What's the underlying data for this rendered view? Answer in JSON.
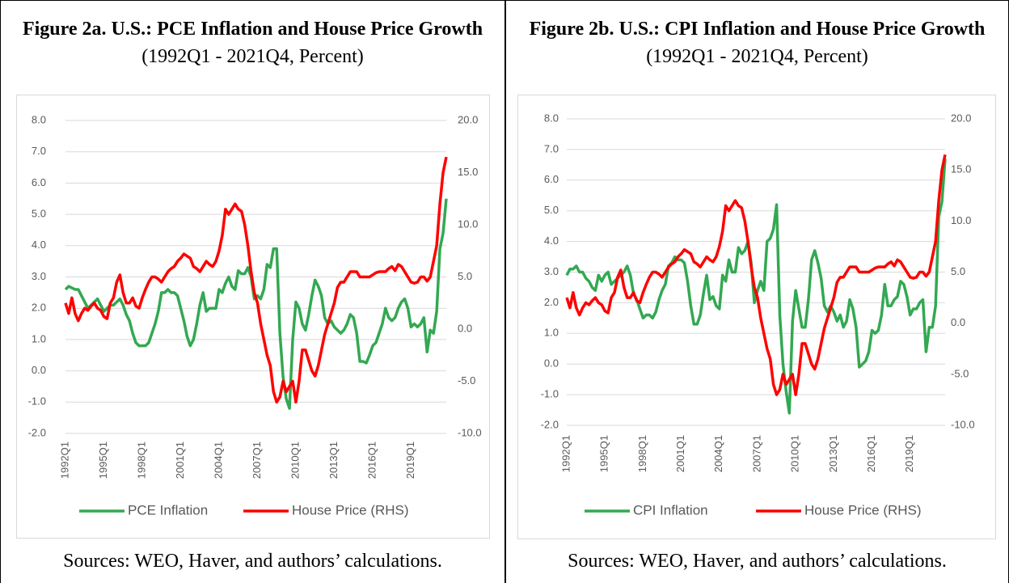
{
  "chart_data": [
    {
      "type": "line",
      "title": "Figure 2a. U.S.: PCE Inflation and House Price Growth",
      "subtitle": "(1992Q1 - 2021Q4, Percent)",
      "source": "Sources: WEO, Haver, and authors’ calculations.",
      "categories": [
        "1992Q1",
        null,
        null,
        null,
        null,
        null,
        null,
        null,
        null,
        null,
        null,
        null,
        "1995Q1",
        null,
        null,
        null,
        null,
        null,
        null,
        null,
        null,
        null,
        null,
        null,
        "1998Q1",
        null,
        null,
        null,
        null,
        null,
        null,
        null,
        null,
        null,
        null,
        null,
        "2001Q1",
        null,
        null,
        null,
        null,
        null,
        null,
        null,
        null,
        null,
        null,
        null,
        "2004Q1",
        null,
        null,
        null,
        null,
        null,
        null,
        null,
        null,
        null,
        null,
        null,
        "2007Q1",
        null,
        null,
        null,
        null,
        null,
        null,
        null,
        null,
        null,
        null,
        null,
        "2010Q1",
        null,
        null,
        null,
        null,
        null,
        null,
        null,
        null,
        null,
        null,
        null,
        "2013Q1",
        null,
        null,
        null,
        null,
        null,
        null,
        null,
        null,
        null,
        null,
        null,
        "2016Q1",
        null,
        null,
        null,
        null,
        null,
        null,
        null,
        null,
        null,
        null,
        null,
        "2019Q1",
        null,
        null,
        null,
        null,
        null,
        null,
        null,
        null,
        null,
        null,
        null
      ],
      "ylim": [
        -2,
        8
      ],
      "yticks": [
        {
          "value": -2,
          "label": "-2.0"
        },
        {
          "value": -1,
          "label": "-1.0"
        },
        {
          "value": 0,
          "label": "0.0"
        },
        {
          "value": 1,
          "label": "1.0"
        },
        {
          "value": 2,
          "label": "2.0"
        },
        {
          "value": 3,
          "label": "3.0"
        },
        {
          "value": 4,
          "label": "4.0"
        },
        {
          "value": 5,
          "label": "5.0"
        },
        {
          "value": 6,
          "label": "6.0"
        },
        {
          "value": 7,
          "label": "7.0"
        },
        {
          "value": 8,
          "label": "8.0"
        }
      ],
      "y2lim": [
        -10,
        20
      ],
      "y2ticks": [
        {
          "value": -10,
          "label": "-10.0"
        },
        {
          "value": -5,
          "label": "-5.0"
        },
        {
          "value": 0,
          "label": "0.0"
        },
        {
          "value": 5,
          "label": "5.0"
        },
        {
          "value": 10,
          "label": "10.0"
        },
        {
          "value": 15,
          "label": "15.0"
        },
        {
          "value": 20,
          "label": "20.0"
        }
      ],
      "grid": true,
      "legend": "bottom",
      "series": [
        {
          "name": "PCE Inflation",
          "color": "#33a852",
          "values": [
            2.6,
            2.7,
            2.65,
            2.6,
            2.6,
            2.4,
            2.2,
            2.0,
            2.1,
            2.2,
            2.3,
            2.1,
            1.9,
            2.0,
            2.1,
            2.1,
            2.2,
            2.3,
            2.1,
            1.8,
            1.6,
            1.2,
            0.9,
            0.8,
            0.8,
            0.8,
            0.9,
            1.2,
            1.5,
            1.9,
            2.5,
            2.5,
            2.6,
            2.5,
            2.5,
            2.4,
            2.0,
            1.6,
            1.1,
            0.8,
            1.0,
            1.5,
            2.1,
            2.5,
            1.9,
            2.0,
            2.0,
            2.0,
            2.6,
            2.5,
            2.8,
            3.0,
            2.7,
            2.6,
            3.2,
            3.1,
            3.1,
            3.3,
            3.0,
            2.3,
            2.4,
            2.3,
            2.6,
            3.4,
            3.3,
            3.9,
            3.9,
            1.2,
            -0.2,
            -0.9,
            -1.2,
            1.0,
            2.2,
            2.0,
            1.5,
            1.3,
            1.8,
            2.4,
            2.9,
            2.7,
            2.4,
            1.7,
            1.5,
            1.6,
            1.4,
            1.3,
            1.2,
            1.3,
            1.5,
            1.8,
            1.7,
            1.2,
            0.3,
            0.3,
            0.25,
            0.5,
            0.8,
            0.9,
            1.2,
            1.5,
            2.0,
            1.7,
            1.6,
            1.7,
            2.0,
            2.2,
            2.3,
            2.0,
            1.4,
            1.5,
            1.4,
            1.5,
            1.7,
            0.6,
            1.3,
            1.2,
            1.9,
            3.9,
            4.4,
            5.5
          ]
        },
        {
          "name": "House Price (RHS)",
          "color": "#ff0000",
          "axis": "y2",
          "values": [
            2.5,
            1.5,
            3.0,
            1.5,
            0.8,
            1.5,
            2.0,
            1.8,
            2.2,
            2.5,
            2.0,
            1.8,
            1.2,
            1.0,
            2.5,
            3.0,
            4.5,
            5.2,
            3.5,
            2.5,
            2.5,
            3.0,
            2.2,
            2.0,
            3.0,
            3.8,
            4.5,
            5.0,
            5.0,
            4.8,
            4.5,
            5.0,
            5.5,
            5.8,
            6.0,
            6.5,
            6.8,
            7.2,
            7.0,
            6.8,
            6.0,
            5.8,
            5.5,
            6.0,
            6.5,
            6.2,
            6.0,
            6.5,
            7.5,
            9.0,
            11.5,
            11.0,
            11.5,
            12.0,
            11.5,
            11.3,
            10.0,
            8.0,
            5.5,
            3.5,
            2.5,
            0.5,
            -1.0,
            -2.5,
            -3.5,
            -6.0,
            -7.0,
            -6.5,
            -5.0,
            -6.0,
            -5.5,
            -5.0,
            -7.0,
            -5.0,
            -2.0,
            -2.0,
            -3.0,
            -4.0,
            -4.5,
            -3.5,
            -2.0,
            -0.5,
            0.5,
            1.5,
            2.5,
            4.0,
            4.5,
            4.5,
            5.0,
            5.5,
            5.5,
            5.5,
            5.0,
            5.0,
            5.0,
            5.0,
            5.2,
            5.4,
            5.5,
            5.5,
            5.5,
            5.8,
            6.0,
            5.6,
            6.2,
            6.0,
            5.5,
            5.0,
            4.5,
            4.4,
            4.5,
            5.0,
            5.0,
            4.6,
            5.0,
            6.5,
            8.0,
            12.0,
            15.0,
            16.5
          ]
        }
      ]
    },
    {
      "type": "line",
      "title": "Figure 2b. U.S.: CPI Inflation and House Price Growth",
      "subtitle": "(1992Q1 - 2021Q4, Percent)",
      "source": "Sources: WEO, Haver, and authors’ calculations.",
      "categories": [
        "1992Q1",
        null,
        null,
        null,
        null,
        null,
        null,
        null,
        null,
        null,
        null,
        null,
        "1995Q1",
        null,
        null,
        null,
        null,
        null,
        null,
        null,
        null,
        null,
        null,
        null,
        "1998Q1",
        null,
        null,
        null,
        null,
        null,
        null,
        null,
        null,
        null,
        null,
        null,
        "2001Q1",
        null,
        null,
        null,
        null,
        null,
        null,
        null,
        null,
        null,
        null,
        null,
        "2004Q1",
        null,
        null,
        null,
        null,
        null,
        null,
        null,
        null,
        null,
        null,
        null,
        "2007Q1",
        null,
        null,
        null,
        null,
        null,
        null,
        null,
        null,
        null,
        null,
        null,
        "2010Q1",
        null,
        null,
        null,
        null,
        null,
        null,
        null,
        null,
        null,
        null,
        null,
        "2013Q1",
        null,
        null,
        null,
        null,
        null,
        null,
        null,
        null,
        null,
        null,
        null,
        "2016Q1",
        null,
        null,
        null,
        null,
        null,
        null,
        null,
        null,
        null,
        null,
        null,
        "2019Q1",
        null,
        null,
        null,
        null,
        null,
        null,
        null,
        null,
        null,
        null,
        null
      ],
      "ylim": [
        -2,
        8
      ],
      "yticks": [
        {
          "value": -2,
          "label": "-2.0"
        },
        {
          "value": -1,
          "label": "-1.0"
        },
        {
          "value": 0,
          "label": "0.0"
        },
        {
          "value": 1,
          "label": "1.0"
        },
        {
          "value": 2,
          "label": "2.0"
        },
        {
          "value": 3,
          "label": "3.0"
        },
        {
          "value": 4,
          "label": "4.0"
        },
        {
          "value": 5,
          "label": "5.0"
        },
        {
          "value": 6,
          "label": "6.0"
        },
        {
          "value": 7,
          "label": "7.0"
        },
        {
          "value": 8,
          "label": "8.0"
        }
      ],
      "y2lim": [
        -10,
        20
      ],
      "y2ticks": [
        {
          "value": -10,
          "label": "-10.0"
        },
        {
          "value": -5,
          "label": "-5.0"
        },
        {
          "value": 0,
          "label": "0.0"
        },
        {
          "value": 5,
          "label": "5.0"
        },
        {
          "value": 10,
          "label": "10.0"
        },
        {
          "value": 15,
          "label": "15.0"
        },
        {
          "value": 20,
          "label": "20.0"
        }
      ],
      "grid": true,
      "legend": "bottom",
      "series": [
        {
          "name": "CPI Inflation",
          "color": "#33a852",
          "values": [
            2.9,
            3.1,
            3.1,
            3.2,
            3.0,
            3.0,
            2.8,
            2.7,
            2.5,
            2.4,
            2.9,
            2.7,
            2.9,
            3.0,
            2.6,
            2.7,
            2.8,
            2.9,
            3.0,
            3.2,
            2.9,
            2.3,
            2.1,
            1.8,
            1.5,
            1.6,
            1.6,
            1.5,
            1.7,
            2.1,
            2.4,
            2.6,
            3.2,
            3.3,
            3.5,
            3.4,
            3.4,
            3.3,
            2.7,
            1.9,
            1.3,
            1.3,
            1.6,
            2.3,
            2.9,
            2.1,
            2.2,
            1.9,
            1.8,
            2.9,
            2.7,
            3.4,
            3.0,
            3.0,
            3.8,
            3.6,
            3.7,
            4.0,
            3.3,
            2.0,
            2.4,
            2.7,
            2.4,
            4.0,
            4.1,
            4.4,
            5.2,
            1.6,
            0.0,
            -0.9,
            -1.6,
            1.4,
            2.4,
            1.8,
            1.2,
            1.2,
            2.1,
            3.4,
            3.7,
            3.3,
            2.8,
            1.9,
            1.7,
            1.9,
            1.7,
            1.4,
            1.6,
            1.2,
            1.4,
            2.1,
            1.8,
            1.2,
            -0.1,
            0.0,
            0.1,
            0.4,
            1.1,
            1.0,
            1.1,
            1.6,
            2.6,
            1.9,
            1.9,
            2.1,
            2.2,
            2.7,
            2.6,
            2.2,
            1.6,
            1.8,
            1.8,
            2.0,
            2.1,
            0.4,
            1.2,
            1.2,
            1.9,
            4.8,
            5.3,
            6.7
          ]
        },
        {
          "name": "House Price (RHS)",
          "color": "#ff0000",
          "axis": "y2",
          "values": [
            2.5,
            1.5,
            3.0,
            1.5,
            0.8,
            1.5,
            2.0,
            1.8,
            2.2,
            2.5,
            2.0,
            1.8,
            1.2,
            1.0,
            2.5,
            3.0,
            4.5,
            5.2,
            3.5,
            2.5,
            2.5,
            3.0,
            2.2,
            2.0,
            3.0,
            3.8,
            4.5,
            5.0,
            5.0,
            4.8,
            4.5,
            5.0,
            5.5,
            5.8,
            6.0,
            6.5,
            6.8,
            7.2,
            7.0,
            6.8,
            6.0,
            5.8,
            5.5,
            6.0,
            6.5,
            6.2,
            6.0,
            6.5,
            7.5,
            9.0,
            11.5,
            11.0,
            11.5,
            12.0,
            11.5,
            11.3,
            10.0,
            8.0,
            5.5,
            3.5,
            2.5,
            0.5,
            -1.0,
            -2.5,
            -3.5,
            -6.0,
            -7.0,
            -6.5,
            -5.0,
            -6.0,
            -5.5,
            -5.0,
            -7.0,
            -5.0,
            -2.0,
            -2.0,
            -3.0,
            -4.0,
            -4.5,
            -3.5,
            -2.0,
            -0.5,
            0.5,
            1.5,
            2.5,
            4.0,
            4.5,
            4.5,
            5.0,
            5.5,
            5.5,
            5.5,
            5.0,
            5.0,
            5.0,
            5.0,
            5.2,
            5.4,
            5.5,
            5.5,
            5.5,
            5.8,
            6.0,
            5.6,
            6.2,
            6.0,
            5.5,
            5.0,
            4.5,
            4.4,
            4.5,
            5.0,
            5.0,
            4.6,
            5.0,
            6.5,
            8.0,
            12.0,
            15.0,
            16.5
          ]
        }
      ]
    }
  ]
}
